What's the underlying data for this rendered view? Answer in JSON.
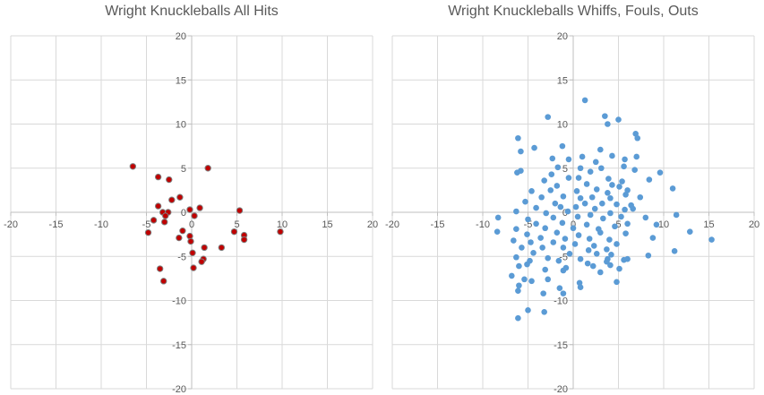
{
  "chart_data": [
    {
      "type": "scatter",
      "title": "Wright Knuckleballs All Hits",
      "xlabel": "",
      "ylabel": "",
      "xlim": [
        -20,
        20
      ],
      "ylim": [
        -20,
        20
      ],
      "grid": true,
      "x_ticks": [
        -20,
        -15,
        -10,
        -5,
        0,
        5,
        10,
        15,
        20
      ],
      "y_ticks": [
        -20,
        -15,
        -10,
        -5,
        0,
        5,
        10,
        15,
        20
      ],
      "marker_color": "#c00000",
      "marker_edge": "#7f7f7f",
      "series": [
        {
          "points": [
            [
              -6.5,
              5.2
            ],
            [
              -3.7,
              4.0
            ],
            [
              -2.5,
              3.7
            ],
            [
              1.8,
              5.0
            ],
            [
              -1.3,
              1.7
            ],
            [
              -2.2,
              1.4
            ],
            [
              -3.7,
              0.7
            ],
            [
              -0.2,
              0.3
            ],
            [
              0.9,
              0.5
            ],
            [
              -3.2,
              0.0
            ],
            [
              -2.6,
              0.0
            ],
            [
              -2.9,
              -0.4
            ],
            [
              0.3,
              -0.4
            ],
            [
              -4.2,
              -0.9
            ],
            [
              -3.0,
              -1.1
            ],
            [
              -4.8,
              -2.3
            ],
            [
              -1.0,
              -2.1
            ],
            [
              5.3,
              0.2
            ],
            [
              9.8,
              -2.2
            ],
            [
              4.7,
              -2.2
            ],
            [
              5.8,
              -2.6
            ],
            [
              5.8,
              -3.1
            ],
            [
              -1.4,
              -2.9
            ],
            [
              -0.2,
              -2.7
            ],
            [
              -0.1,
              -3.3
            ],
            [
              3.3,
              -4.0
            ],
            [
              1.4,
              -4.0
            ],
            [
              0.1,
              -4.6
            ],
            [
              1.3,
              -5.3
            ],
            [
              1.1,
              -5.6
            ],
            [
              0.2,
              -6.3
            ],
            [
              -3.5,
              -6.4
            ],
            [
              -3.1,
              -7.8
            ]
          ]
        }
      ]
    },
    {
      "type": "scatter",
      "title": "Wright Knuckleballs Whiffs, Fouls, Outs",
      "xlabel": "",
      "ylabel": "",
      "xlim": [
        -20,
        20
      ],
      "ylim": [
        -20,
        20
      ],
      "grid": true,
      "x_ticks": [
        -20,
        -15,
        -10,
        -5,
        0,
        5,
        10,
        15,
        20
      ],
      "y_ticks": [
        -20,
        -15,
        -10,
        -5,
        0,
        5,
        10,
        15,
        20
      ],
      "marker_color": "#5b9bd5",
      "series": [
        {
          "points": [
            [
              1.3,
              12.7
            ],
            [
              -2.8,
              10.8
            ],
            [
              3.5,
              10.9
            ],
            [
              5.0,
              10.5
            ],
            [
              3.8,
              10.0
            ],
            [
              -6.1,
              8.4
            ],
            [
              -4.3,
              7.3
            ],
            [
              6.9,
              8.9
            ],
            [
              7.1,
              8.4
            ],
            [
              -1.2,
              7.5
            ],
            [
              3.0,
              7.1
            ],
            [
              -5.8,
              6.9
            ],
            [
              1.0,
              6.3
            ],
            [
              -2.3,
              6.1
            ],
            [
              4.3,
              6.4
            ],
            [
              5.7,
              6.0
            ],
            [
              -0.5,
              6.0
            ],
            [
              7.0,
              6.3
            ],
            [
              2.5,
              5.7
            ],
            [
              0.8,
              5.0
            ],
            [
              -1.7,
              5.1
            ],
            [
              3.1,
              5.0
            ],
            [
              5.6,
              5.2
            ],
            [
              -6.2,
              4.5
            ],
            [
              -5.8,
              4.7
            ],
            [
              1.9,
              4.6
            ],
            [
              -2.4,
              4.3
            ],
            [
              6.8,
              4.8
            ],
            [
              9.6,
              4.5
            ],
            [
              0.6,
              3.9
            ],
            [
              -3.2,
              3.6
            ],
            [
              -0.5,
              3.9
            ],
            [
              3.9,
              3.8
            ],
            [
              5.4,
              3.5
            ],
            [
              8.4,
              3.7
            ],
            [
              -1.8,
              3.0
            ],
            [
              1.5,
              3.2
            ],
            [
              4.3,
              3.1
            ],
            [
              5.1,
              2.9
            ],
            [
              6.0,
              2.5
            ],
            [
              -4.6,
              2.4
            ],
            [
              -2.5,
              2.5
            ],
            [
              0.4,
              2.4
            ],
            [
              2.6,
              2.6
            ],
            [
              3.8,
              2.2
            ],
            [
              5.8,
              2.0
            ],
            [
              11.0,
              2.7
            ],
            [
              -3.5,
              1.7
            ],
            [
              -1.1,
              1.8
            ],
            [
              0.8,
              1.6
            ],
            [
              2.1,
              1.7
            ],
            [
              4.1,
              1.6
            ],
            [
              7.4,
              1.7
            ],
            [
              -5.3,
              1.2
            ],
            [
              -2.0,
              1.0
            ],
            [
              1.3,
              1.0
            ],
            [
              3.2,
              1.0
            ],
            [
              4.8,
              0.9
            ],
            [
              6.4,
              0.8
            ],
            [
              -4.1,
              0.5
            ],
            [
              -1.4,
              0.6
            ],
            [
              0.3,
              0.6
            ],
            [
              2.4,
              0.4
            ],
            [
              5.7,
              0.3
            ],
            [
              6.6,
              0.4
            ],
            [
              -6.3,
              0.1
            ],
            [
              -3.0,
              -0.1
            ],
            [
              -0.6,
              0.1
            ],
            [
              1.9,
              -0.3
            ],
            [
              4.1,
              -0.1
            ],
            [
              11.4,
              -0.3
            ],
            [
              -8.3,
              -0.6
            ],
            [
              -5.0,
              -0.8
            ],
            [
              -2.2,
              -0.6
            ],
            [
              0.5,
              -0.5
            ],
            [
              3.3,
              -0.7
            ],
            [
              5.3,
              -0.5
            ],
            [
              8.0,
              -0.6
            ],
            [
              -4.1,
              -1.3
            ],
            [
              -1.2,
              -1.2
            ],
            [
              1.5,
              -1.4
            ],
            [
              6.0,
              -1.3
            ],
            [
              9.2,
              -1.4
            ],
            [
              -6.3,
              -1.9
            ],
            [
              -3.1,
              -1.8
            ],
            [
              0.0,
              -1.8
            ],
            [
              2.8,
              -1.9
            ],
            [
              4.6,
              -1.6
            ],
            [
              -8.4,
              -2.2
            ],
            [
              -5.1,
              -2.5
            ],
            [
              -1.8,
              -2.3
            ],
            [
              0.6,
              -2.6
            ],
            [
              3.0,
              -2.3
            ],
            [
              5.8,
              -2.4
            ],
            [
              12.9,
              -2.2
            ],
            [
              -3.6,
              -2.9
            ],
            [
              -0.9,
              -3.0
            ],
            [
              1.8,
              -3.0
            ],
            [
              4.0,
              -3.1
            ],
            [
              8.8,
              -2.9
            ],
            [
              15.3,
              -3.1
            ],
            [
              -6.6,
              -3.2
            ],
            [
              -4.7,
              -3.4
            ],
            [
              -2.2,
              -3.4
            ],
            [
              0.2,
              -3.6
            ],
            [
              2.3,
              -3.8
            ],
            [
              4.8,
              -3.6
            ],
            [
              -5.7,
              -4.0
            ],
            [
              -3.4,
              -4.0
            ],
            [
              -1.1,
              -4.0
            ],
            [
              1.7,
              -4.3
            ],
            [
              3.7,
              -4.2
            ],
            [
              11.2,
              -4.4
            ],
            [
              -4.4,
              -4.6
            ],
            [
              -0.4,
              -4.7
            ],
            [
              2.6,
              -4.7
            ],
            [
              4.2,
              -4.8
            ],
            [
              8.3,
              -4.9
            ],
            [
              -6.3,
              -5.1
            ],
            [
              -2.8,
              -5.2
            ],
            [
              0.8,
              -5.3
            ],
            [
              3.8,
              -5.3
            ],
            [
              5.6,
              -5.4
            ],
            [
              6.0,
              -5.3
            ],
            [
              -4.8,
              -5.5
            ],
            [
              -1.6,
              -5.5
            ],
            [
              1.6,
              -5.8
            ],
            [
              3.7,
              -5.6
            ],
            [
              -5.1,
              -5.9
            ],
            [
              -6.0,
              -6.1
            ],
            [
              -0.8,
              -6.3
            ],
            [
              2.2,
              -6.1
            ],
            [
              4.1,
              -6.0
            ],
            [
              -3.1,
              -6.5
            ],
            [
              -1.1,
              -6.6
            ],
            [
              3.0,
              -6.8
            ],
            [
              5.1,
              -6.4
            ],
            [
              -6.8,
              -7.2
            ],
            [
              -5.4,
              -7.6
            ],
            [
              -4.6,
              -7.8
            ],
            [
              -2.8,
              -7.6
            ],
            [
              0.7,
              -8.0
            ],
            [
              4.8,
              -7.9
            ],
            [
              -6.0,
              -8.3
            ],
            [
              -1.5,
              -8.6
            ],
            [
              0.8,
              -8.5
            ],
            [
              -6.1,
              -8.9
            ],
            [
              -3.3,
              -9.2
            ],
            [
              -1.1,
              -9.2
            ],
            [
              -5.0,
              -11.1
            ],
            [
              -3.2,
              -11.3
            ],
            [
              -6.1,
              -12.0
            ]
          ]
        }
      ]
    }
  ]
}
